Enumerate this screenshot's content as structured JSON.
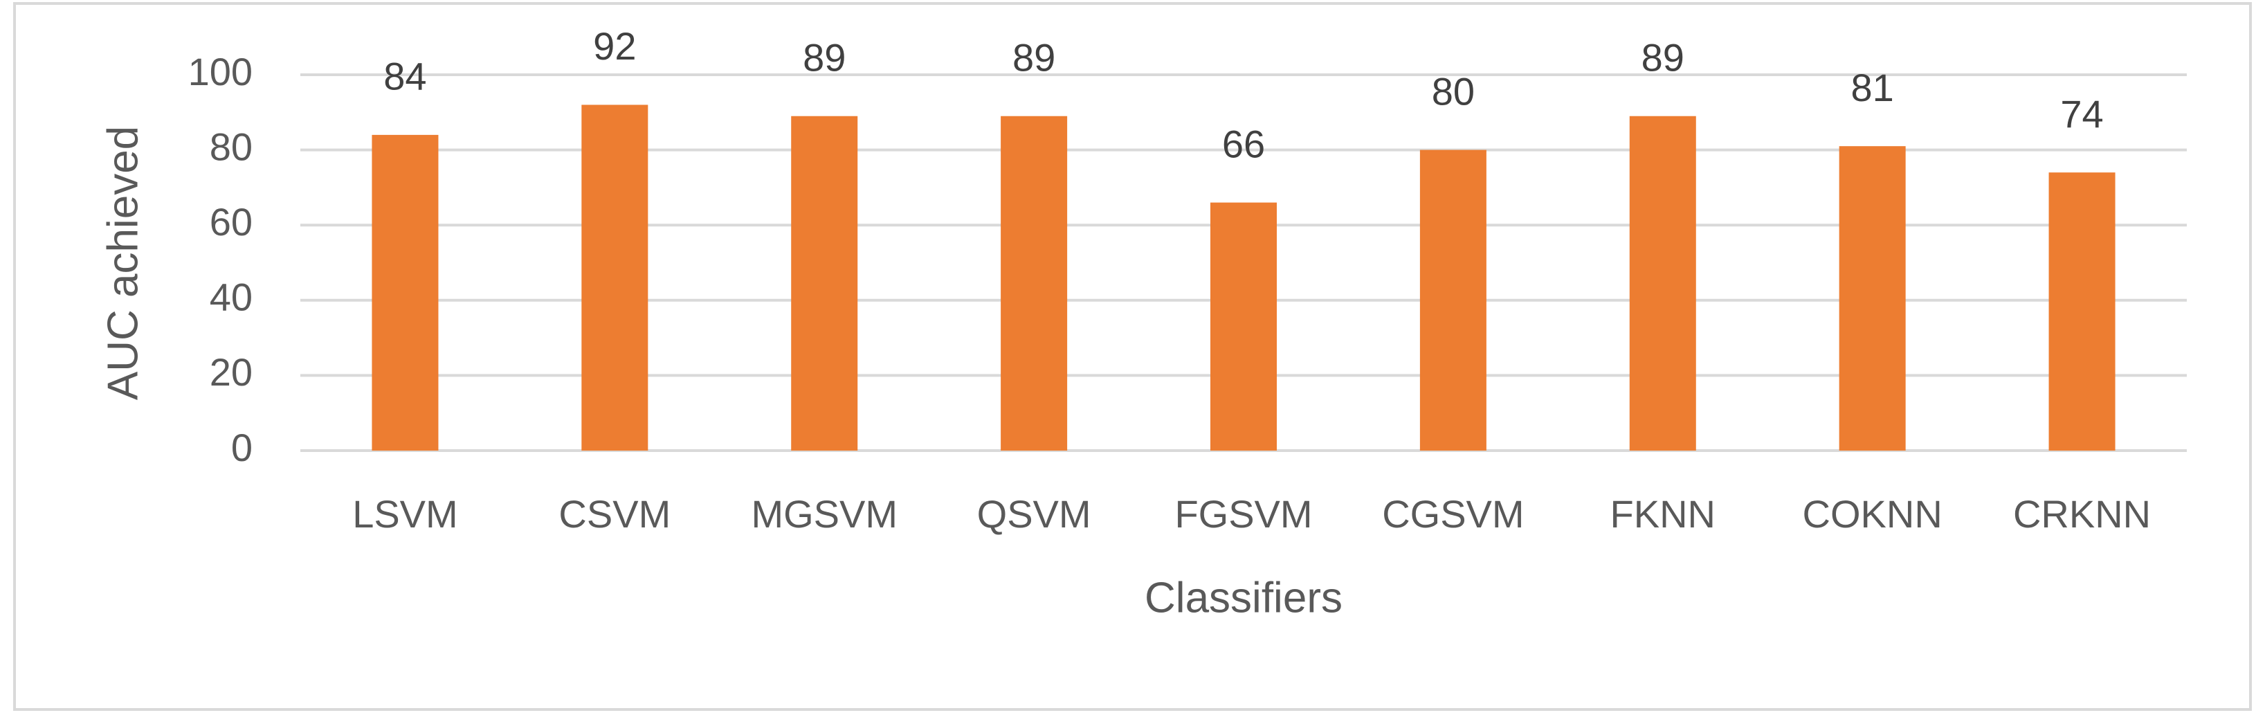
{
  "chart_data": {
    "type": "bar",
    "x_label": "Classifiers",
    "y_label": "AUC achieved",
    "categories": [
      "LSVM",
      "CSVM",
      "MGSVM",
      "QSVM",
      "FGSVM",
      "CGSVM",
      "FKNN",
      "COKNN",
      "CRKNN"
    ],
    "values": [
      84,
      92,
      89,
      89,
      66,
      80,
      89,
      81,
      74
    ],
    "color": "#ed7d31",
    "ylim": [
      0,
      100
    ],
    "yticks": [
      0,
      20,
      40,
      60,
      80,
      100
    ],
    "grid": true,
    "data_labels": true
  }
}
